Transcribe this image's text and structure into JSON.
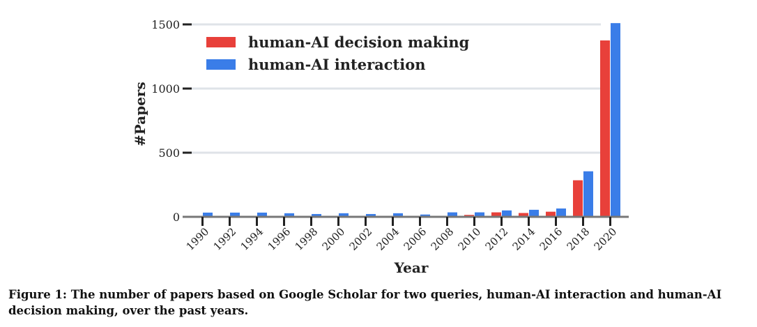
{
  "chart_data": {
    "type": "bar",
    "xlabel": "Year",
    "ylabel": "#Papers",
    "ylim": [
      0,
      1500
    ],
    "yticks": [
      0,
      500,
      1000,
      1500
    ],
    "grid": true,
    "legend_position": "top-left",
    "categories": [
      "1990",
      "1992",
      "1994",
      "1996",
      "1998",
      "2000",
      "2002",
      "2004",
      "2006",
      "2008",
      "2010",
      "2012",
      "2014",
      "2016",
      "2018",
      "2020"
    ],
    "series": [
      {
        "name": "human-AI decision making",
        "color": "#e8403a",
        "values": [
          0,
          0,
          0,
          0,
          0,
          0,
          0,
          0,
          0,
          5,
          15,
          35,
          30,
          40,
          285,
          1375
        ]
      },
      {
        "name": "human-AI interaction",
        "color": "#3a7de8",
        "values": [
          33,
          33,
          33,
          28,
          22,
          28,
          22,
          28,
          18,
          35,
          35,
          50,
          55,
          65,
          355,
          1510
        ]
      }
    ]
  },
  "caption": "Figure 1: The number of papers based on Google Scholar for two queries, human-AI interaction and human-AI decision making, over the past years."
}
